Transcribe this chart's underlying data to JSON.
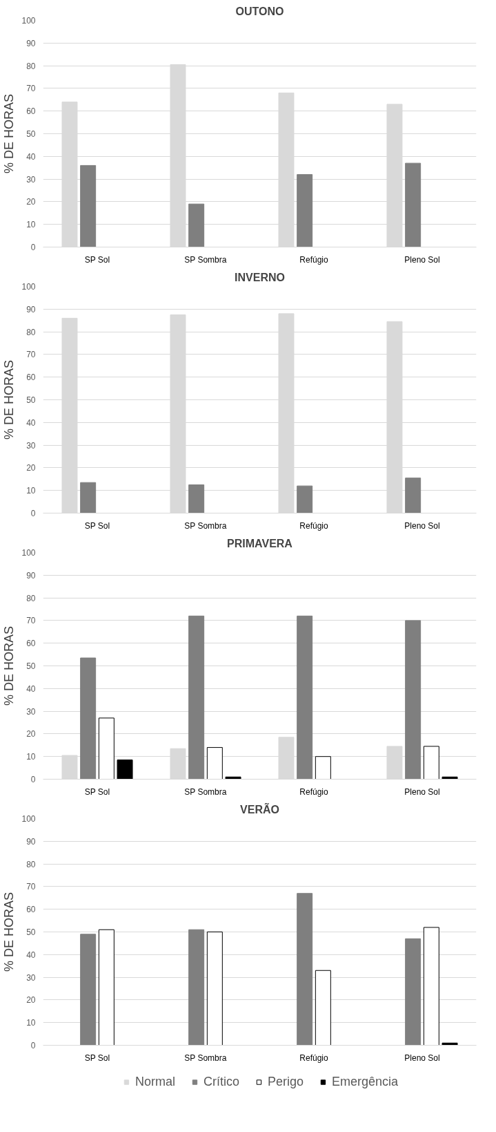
{
  "chart_data": [
    {
      "type": "bar",
      "title": "OUTONO",
      "ylabel": "% DE HORAS",
      "categories": [
        "SP Sol",
        "SP Sombra",
        "Refúgio",
        "Pleno Sol"
      ],
      "ylim": [
        0,
        100
      ],
      "yticks": [
        0,
        10,
        20,
        30,
        40,
        50,
        60,
        70,
        80,
        90,
        100
      ],
      "grid": "y",
      "series": [
        {
          "color": "#d9d9d9",
          "values": [
            64,
            80.5,
            68,
            63
          ]
        },
        {
          "color": "#7f7f7f",
          "values": [
            36,
            19,
            32,
            37
          ]
        },
        {
          "values": [
            null,
            null,
            null,
            null
          ]
        },
        {
          "values": [
            null,
            null,
            null,
            null
          ]
        }
      ]
    },
    {
      "type": "bar",
      "title": "INVERNO",
      "ylabel": "% DE HORAS",
      "categories": [
        "SP Sol",
        "SP Sombra",
        "Refúgio",
        "Pleno Sol"
      ],
      "ylim": [
        0,
        100
      ],
      "yticks": [
        0,
        10,
        20,
        30,
        40,
        50,
        60,
        70,
        80,
        90,
        100
      ],
      "grid": "y",
      "series": [
        {
          "color": "#d9d9d9",
          "values": [
            86,
            87.5,
            88,
            84.5
          ]
        },
        {
          "color": "#7f7f7f",
          "values": [
            13.5,
            12.5,
            12,
            15.5
          ]
        },
        {
          "values": [
            null,
            null,
            null,
            null
          ]
        },
        {
          "values": [
            null,
            null,
            null,
            null
          ]
        }
      ]
    },
    {
      "type": "bar",
      "title": "PRIMAVERA",
      "ylabel": "% DE HORAS",
      "categories": [
        "SP Sol",
        "SP Sombra",
        "Refúgio",
        "Pleno Sol"
      ],
      "ylim": [
        0,
        100
      ],
      "yticks": [
        0,
        10,
        20,
        30,
        40,
        50,
        60,
        70,
        80,
        90,
        100
      ],
      "grid": "y",
      "series": [
        {
          "color": "#d9d9d9",
          "values": [
            10.5,
            13.5,
            18.5,
            14.5
          ]
        },
        {
          "color": "#7f7f7f",
          "values": [
            53.5,
            72,
            72,
            70
          ]
        },
        {
          "color": "#ffffff",
          "values": [
            27,
            14,
            10,
            14.5
          ]
        },
        {
          "color": "#000000",
          "values": [
            8.5,
            1,
            null,
            1
          ]
        }
      ]
    },
    {
      "type": "bar",
      "title": "VERÃO",
      "ylabel": "% DE HORAS",
      "categories": [
        "SP Sol",
        "SP Sombra",
        "Refúgio",
        "Pleno Sol"
      ],
      "ylim": [
        0,
        100
      ],
      "yticks": [
        0,
        10,
        20,
        30,
        40,
        50,
        60,
        70,
        80,
        90,
        100
      ],
      "grid": "y",
      "legend": "bottom",
      "series": [
        {
          "name": "Normal",
          "color": "#d9d9d9",
          "values": [
            null,
            null,
            null,
            null
          ]
        },
        {
          "name": "Crítico",
          "color": "#7f7f7f",
          "values": [
            49,
            51,
            67,
            47
          ]
        },
        {
          "name": "Perigo",
          "color": "#ffffff",
          "values": [
            51,
            50,
            33,
            52
          ]
        },
        {
          "name": "Emergência",
          "color": "#000000",
          "values": [
            null,
            null,
            null,
            1
          ]
        }
      ]
    }
  ]
}
